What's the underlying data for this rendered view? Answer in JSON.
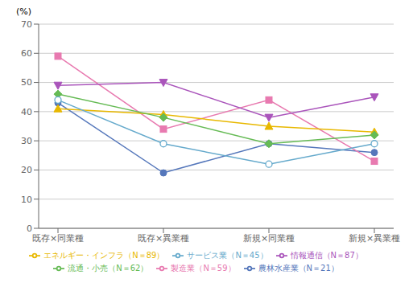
{
  "chart_data": {
    "type": "line",
    "ylabel": "(%)",
    "categories": [
      "既存×同業種",
      "既存×異業種",
      "新規×同業種",
      "新規×異業種"
    ],
    "series": [
      {
        "name": "農林水産業（N＝21）",
        "values": [
          43,
          19,
          29,
          26
        ],
        "color": "#5577bb",
        "marker": "circle"
      },
      {
        "name": "製造業（N＝59）",
        "values": [
          59,
          34,
          44,
          23
        ],
        "color": "#e87ab0",
        "marker": "square"
      },
      {
        "name": "エネルギー・インフラ（N＝89）",
        "values": [
          41,
          39,
          35,
          33
        ],
        "color": "#e8b800",
        "marker": "triangle-up"
      },
      {
        "name": "流通・小売（N＝62）",
        "values": [
          46,
          38,
          29,
          32
        ],
        "color": "#66bb55",
        "marker": "diamond"
      },
      {
        "name": "情報通信（N＝87）",
        "values": [
          49,
          50,
          38,
          45
        ],
        "color": "#aa55bb",
        "marker": "triangle-down"
      },
      {
        "name": "サービス業（N＝45）",
        "values": [
          44,
          29,
          22,
          29
        ],
        "color": "#66aacc",
        "marker": "circle-open"
      }
    ],
    "ylim": [
      0,
      70
    ],
    "yticks": [
      0,
      10,
      20,
      30,
      40,
      50,
      60,
      70
    ],
    "grid": true,
    "legend": "bottom"
  }
}
